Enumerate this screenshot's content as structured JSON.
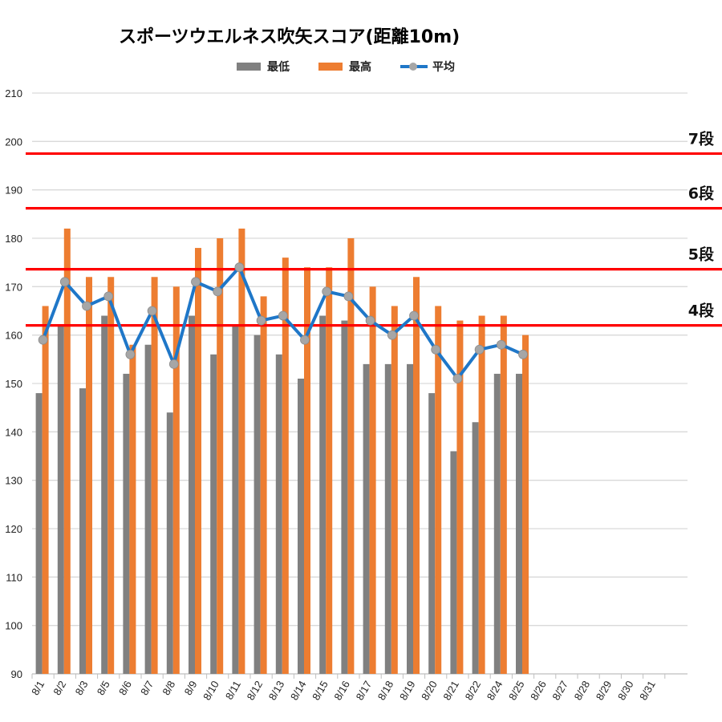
{
  "chart_data": {
    "type": "bar",
    "title": "スポーツウエルネス吹矢スコア(距離10m)",
    "legend": [
      "最低",
      "最高",
      "平均"
    ],
    "legend_position": "top",
    "grid": true,
    "ylim": [
      90,
      210
    ],
    "yticks": [
      90,
      100,
      110,
      120,
      130,
      140,
      150,
      160,
      170,
      180,
      190,
      200,
      210
    ],
    "categories": [
      "8/1",
      "8/2",
      "8/3",
      "8/5",
      "8/6",
      "8/7",
      "8/8",
      "8/9",
      "8/10",
      "8/11",
      "8/12",
      "8/13",
      "8/14",
      "8/15",
      "8/16",
      "8/17",
      "8/18",
      "8/19",
      "8/20",
      "8/21",
      "8/22",
      "8/24",
      "8/25",
      "8/26",
      "8/27",
      "8/28",
      "8/29",
      "8/30",
      "8/31"
    ],
    "series": [
      {
        "name": "最低",
        "type": "bar",
        "color": "#808080",
        "values": [
          148,
          162,
          149,
          164,
          152,
          158,
          144,
          164,
          156,
          162,
          160,
          156,
          151,
          164,
          163,
          154,
          154,
          154,
          148,
          136,
          142,
          152,
          152,
          null,
          null,
          null,
          null,
          null,
          null
        ]
      },
      {
        "name": "最高",
        "type": "bar",
        "color": "#ed7d31",
        "values": [
          166,
          182,
          172,
          172,
          158,
          172,
          170,
          178,
          180,
          182,
          168,
          176,
          174,
          174,
          180,
          170,
          166,
          172,
          166,
          163,
          164,
          164,
          160,
          null,
          null,
          null,
          null,
          null,
          null
        ]
      },
      {
        "name": "平均",
        "type": "line",
        "color": "#1f77c8",
        "marker_color": "#a6a6a6",
        "values": [
          159,
          171,
          166,
          168,
          156,
          165,
          154,
          171,
          169,
          174,
          163,
          164,
          159,
          169,
          168,
          163,
          160,
          164,
          157,
          151,
          157,
          158,
          156,
          null,
          null,
          null,
          null,
          null,
          null
        ]
      }
    ],
    "reference_lines": [
      {
        "label": "7段",
        "value": 197.5,
        "color": "#ff0000"
      },
      {
        "label": "6段",
        "value": 186.2,
        "color": "#ff0000"
      },
      {
        "label": "5段",
        "value": 173.6,
        "color": "#ff0000"
      },
      {
        "label": "4段",
        "value": 162.0,
        "color": "#ff0000"
      }
    ]
  }
}
